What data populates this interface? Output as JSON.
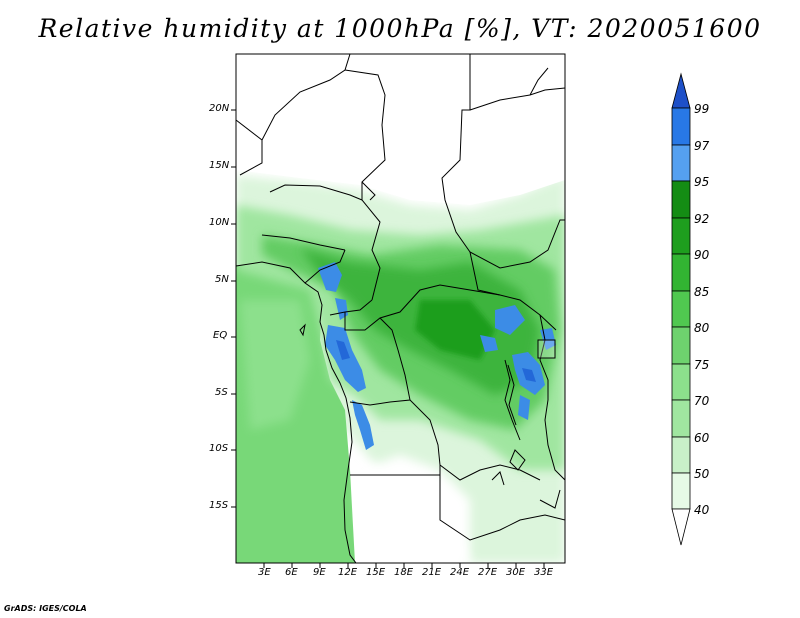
{
  "title": "Relative humidity at 1000hPa [%], VT: 2020051600",
  "credit": "GrADS: IGES/COLA",
  "lat_labels": [
    "20N",
    "15N",
    "10N",
    "5N",
    "EQ",
    "5S",
    "10S",
    "15S"
  ],
  "lon_labels": [
    "3E",
    "6E",
    "9E",
    "12E",
    "15E",
    "18E",
    "21E",
    "24E",
    "27E",
    "30E",
    "33E"
  ],
  "colorbar": {
    "levels": [
      "40",
      "50",
      "60",
      "70",
      "75",
      "80",
      "85",
      "90",
      "92",
      "95",
      "97",
      "99"
    ],
    "colors": [
      "#ffffff",
      "#e6fae6",
      "#c8f0c8",
      "#a0e6a0",
      "#8ce08c",
      "#6ed26e",
      "#50c850",
      "#32b432",
      "#1e9e1e",
      "#148c14",
      "#55a0f0",
      "#2878e6",
      "#1e50c8"
    ]
  }
}
